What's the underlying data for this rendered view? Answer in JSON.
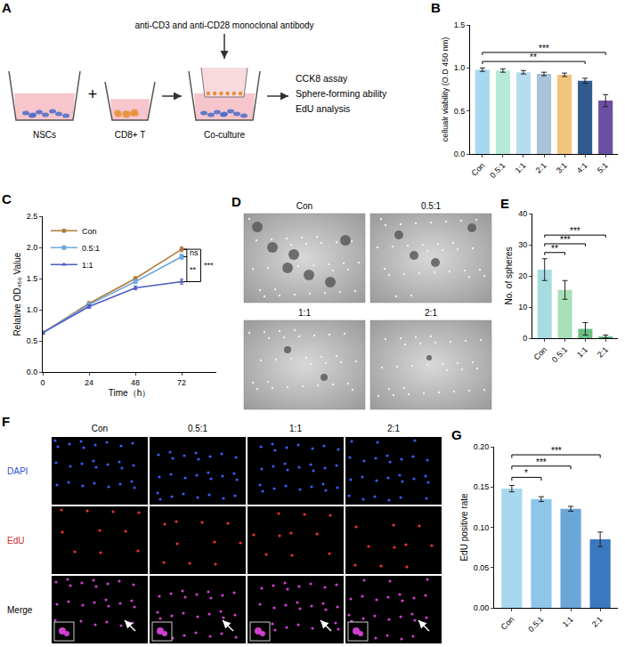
{
  "diagram": {
    "panel": "A",
    "inputs": [
      "NSCs",
      "CD8+ T"
    ],
    "operator": "+",
    "combined": "Co-culture",
    "treatment": "anti-CD3 and anti-CD28 monoclonal antibody",
    "readouts": [
      "CCK8 assay",
      "Sphere-forming ability",
      "EdU analysis"
    ]
  },
  "chart_data": [
    {
      "panel": "B",
      "type": "bar",
      "y_label": "cellualr viability (O.D 450 nm)",
      "categories": [
        "Con",
        "0.5:1",
        "1:1",
        "2:1",
        "3:1",
        "4:1",
        "5:1"
      ],
      "values": [
        0.98,
        0.97,
        0.95,
        0.93,
        0.92,
        0.85,
        0.62
      ],
      "errors": [
        0.02,
        0.02,
        0.02,
        0.02,
        0.02,
        0.03,
        0.07
      ],
      "colors": [
        "#a8d8f0",
        "#b5ead7",
        "#b8dcef",
        "#a9c4d8",
        "#f2c57c",
        "#2f5b8f",
        "#6b4fa0"
      ],
      "ylim": [
        0,
        1.5
      ],
      "yticks": [
        {
          "value": 0,
          "label": "0.0"
        },
        {
          "value": 0.5,
          "label": "0.5"
        },
        {
          "value": 1,
          "label": "1.0"
        },
        {
          "value": 1.5,
          "label": "1.5"
        }
      ],
      "grid": false,
      "significance": [
        {
          "from": "Con",
          "to": "4:1",
          "label": "**"
        },
        {
          "from": "Con",
          "to": "5:1",
          "label": "***"
        }
      ]
    },
    {
      "panel": "C",
      "type": "line",
      "x_label": "Time（h）",
      "y_label": "Relative OD₄₅₀ Value",
      "x": [
        0,
        24,
        48,
        72
      ],
      "series": [
        {
          "name": "Con",
          "color": "#b07a3a",
          "marker": "circle",
          "values": [
            0.63,
            1.1,
            1.5,
            1.97
          ],
          "errors": [
            0.02,
            0.03,
            0.03,
            0.04
          ]
        },
        {
          "name": "0.5:1",
          "color": "#6fa8dc",
          "marker": "square",
          "values": [
            0.63,
            1.08,
            1.45,
            1.85
          ],
          "errors": [
            0.02,
            0.03,
            0.03,
            0.04
          ]
        },
        {
          "name": "1:1",
          "color": "#4a5bc4",
          "marker": "triangle-up",
          "values": [
            0.63,
            1.05,
            1.35,
            1.45
          ],
          "errors": [
            0.02,
            0.03,
            0.03,
            0.04
          ]
        }
      ],
      "xlim": [
        0,
        90
      ],
      "xticks": [
        0,
        24,
        48,
        72
      ],
      "ylim": [
        0,
        2.5
      ],
      "yticks": [
        {
          "value": 0,
          "label": "0.0"
        },
        {
          "value": 0.5,
          "label": "0.5"
        },
        {
          "value": 1,
          "label": "1.0"
        },
        {
          "value": 1.5,
          "label": "1.5"
        },
        {
          "value": 2,
          "label": "2.0"
        },
        {
          "value": 2.5,
          "label": "2.5"
        }
      ],
      "legend": "top-left",
      "grid": false,
      "significance": [
        {
          "from": "Con",
          "to": "0.5:1",
          "label": "ns"
        },
        {
          "from": "0.5:1",
          "to": "1:1",
          "label": "**"
        },
        {
          "from": "Con",
          "to": "1:1",
          "label": "***"
        }
      ]
    },
    {
      "panel": "E",
      "type": "bar",
      "y_label": "No. of spheres",
      "categories": [
        "Con",
        "0.5:1",
        "1:1",
        "2:1"
      ],
      "values": [
        22,
        15.5,
        3,
        0.5
      ],
      "errors": [
        3.5,
        3,
        2,
        0.5
      ],
      "colors": [
        "#a6dce0",
        "#a8e0b8",
        "#6cbf84",
        "#4aa870"
      ],
      "ylim": [
        0,
        40
      ],
      "yticks": [
        0,
        10,
        20,
        30,
        40
      ],
      "grid": false,
      "significance": [
        {
          "from": "Con",
          "to": "0.5:1",
          "label": "**"
        },
        {
          "from": "Con",
          "to": "1:1",
          "label": "***"
        },
        {
          "from": "Con",
          "to": "2:1",
          "label": "***"
        }
      ]
    },
    {
      "panel": "G",
      "type": "bar",
      "y_label": "EdU positive rate",
      "categories": [
        "Con",
        "0.5:1",
        "1:1",
        "2:1"
      ],
      "values": [
        0.148,
        0.135,
        0.123,
        0.085
      ],
      "errors": [
        0.004,
        0.003,
        0.003,
        0.009
      ],
      "colors": [
        "#a8d8f0",
        "#8ec6ea",
        "#6aa6d8",
        "#3a78c0"
      ],
      "ylim": [
        0,
        0.2
      ],
      "yticks": [
        {
          "value": 0,
          "label": "0.00"
        },
        {
          "value": 0.05,
          "label": "0.05"
        },
        {
          "value": 0.1,
          "label": "0.10"
        },
        {
          "value": 0.15,
          "label": "0.15"
        },
        {
          "value": 0.2,
          "label": "0.20"
        }
      ],
      "grid": false,
      "significance": [
        {
          "from": "Con",
          "to": "0.5:1",
          "label": "*"
        },
        {
          "from": "Con",
          "to": "1:1",
          "label": "***"
        },
        {
          "from": "Con",
          "to": "2:1",
          "label": "***"
        }
      ]
    }
  ],
  "images": [
    {
      "panel": "D",
      "columns": [
        "Con",
        "0.5:1",
        "1:1",
        "2:1"
      ]
    },
    {
      "panel": "F",
      "columns": [
        "Con",
        "0.5:1",
        "1:1",
        "2:1"
      ],
      "rows": [
        "DAPI",
        "EdU",
        "Merge"
      ]
    }
  ]
}
